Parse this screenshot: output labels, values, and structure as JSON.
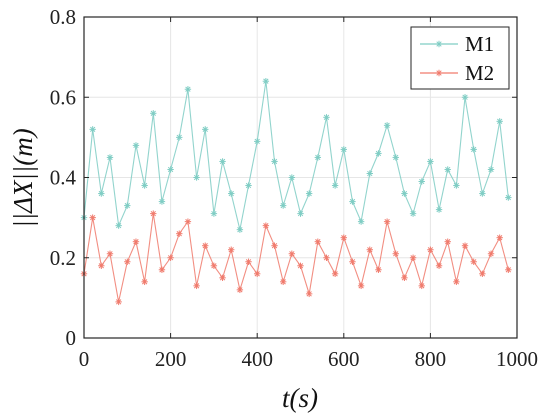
{
  "chart_data": {
    "type": "line",
    "xlabel": "t(s)",
    "ylabel": "||ΔX||(m)",
    "xlim": [
      0,
      1000
    ],
    "ylim": [
      0,
      0.8
    ],
    "xticks": [
      0,
      200,
      400,
      600,
      800,
      1000
    ],
    "yticks": [
      0,
      0.2,
      0.4,
      0.6,
      0.8
    ],
    "xtick_labels": [
      "0",
      "200",
      "400",
      "600",
      "800",
      "1000"
    ],
    "ytick_labels": [
      "0",
      "0.2",
      "0.4",
      "0.6",
      "0.8"
    ],
    "grid": true,
    "legend_position": "top-right",
    "x": [
      0,
      20,
      40,
      60,
      80,
      100,
      120,
      140,
      160,
      180,
      200,
      220,
      240,
      260,
      280,
      300,
      320,
      340,
      360,
      380,
      400,
      420,
      440,
      460,
      480,
      500,
      520,
      540,
      560,
      580,
      600,
      620,
      640,
      660,
      680,
      700,
      720,
      740,
      760,
      780,
      800,
      820,
      840,
      860,
      880,
      900,
      920,
      940,
      960,
      980
    ],
    "series": [
      {
        "name": "M1",
        "color": "#7fcdc4",
        "marker": "star",
        "values": [
          0.3,
          0.52,
          0.36,
          0.45,
          0.28,
          0.33,
          0.48,
          0.38,
          0.56,
          0.34,
          0.42,
          0.5,
          0.62,
          0.4,
          0.52,
          0.31,
          0.44,
          0.36,
          0.27,
          0.38,
          0.49,
          0.64,
          0.44,
          0.33,
          0.4,
          0.31,
          0.36,
          0.45,
          0.55,
          0.38,
          0.47,
          0.34,
          0.29,
          0.41,
          0.46,
          0.53,
          0.45,
          0.36,
          0.31,
          0.39,
          0.44,
          0.32,
          0.42,
          0.38,
          0.6,
          0.47,
          0.36,
          0.42,
          0.54,
          0.35
        ]
      },
      {
        "name": "M2",
        "color": "#f07a6c",
        "marker": "star",
        "values": [
          0.16,
          0.3,
          0.18,
          0.21,
          0.09,
          0.19,
          0.24,
          0.14,
          0.31,
          0.17,
          0.2,
          0.26,
          0.29,
          0.13,
          0.23,
          0.18,
          0.15,
          0.22,
          0.12,
          0.19,
          0.16,
          0.28,
          0.23,
          0.14,
          0.21,
          0.18,
          0.11,
          0.24,
          0.2,
          0.16,
          0.25,
          0.19,
          0.13,
          0.22,
          0.17,
          0.29,
          0.21,
          0.15,
          0.2,
          0.13,
          0.22,
          0.18,
          0.24,
          0.14,
          0.23,
          0.19,
          0.16,
          0.21,
          0.25,
          0.17
        ]
      }
    ]
  }
}
